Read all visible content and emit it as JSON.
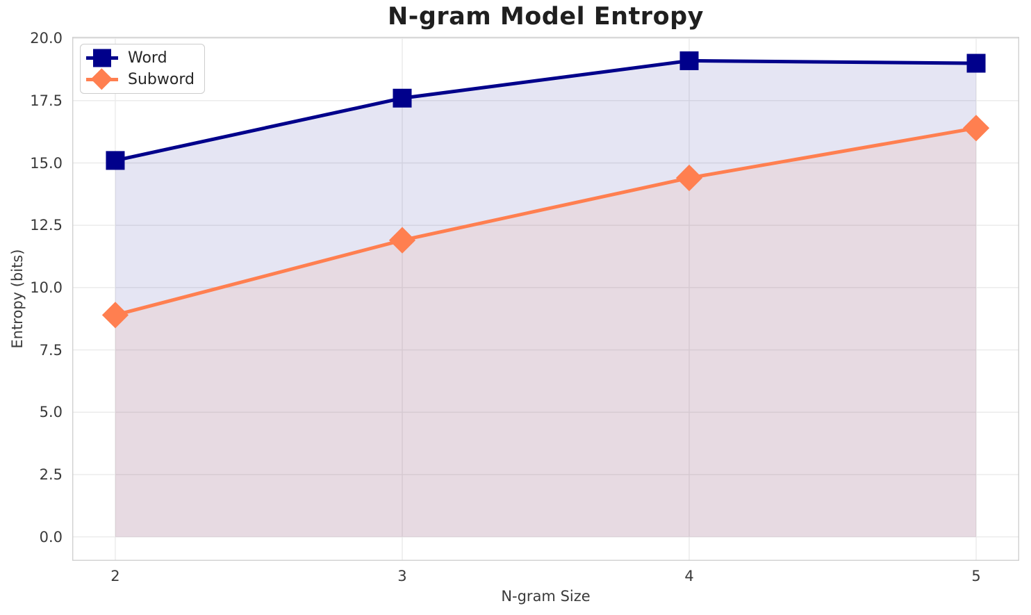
{
  "chart_data": {
    "type": "line",
    "title": "N-gram Model Entropy",
    "xlabel": "N-gram Size",
    "ylabel": "Entropy (bits)",
    "x": [
      2,
      3,
      4,
      5
    ],
    "series": [
      {
        "name": "Word",
        "values": [
          15.1,
          17.6,
          19.1,
          19.0
        ],
        "color": "#00008B",
        "marker": "square",
        "fill_to_zero": true,
        "fill_opacity": 0.1
      },
      {
        "name": "Subword",
        "values": [
          8.9,
          11.9,
          14.4,
          16.4
        ],
        "color": "#FF7F50",
        "marker": "diamond",
        "fill_to_zero": true,
        "fill_opacity": 0.1
      }
    ],
    "xlim": [
      1.85,
      5.15
    ],
    "ylim": [
      -0.96,
      20.06
    ],
    "xtick_values": [
      2,
      3,
      4,
      5
    ],
    "xtick_labels": [
      "2",
      "3",
      "4",
      "5"
    ],
    "ytick_values": [
      0,
      2.5,
      5,
      7.5,
      10,
      12.5,
      15,
      17.5,
      20
    ],
    "ytick_labels": [
      "0.0",
      "2.5",
      "5.0",
      "7.5",
      "10.0",
      "12.5",
      "15.0",
      "17.5",
      "20.0"
    ],
    "grid": true,
    "legend_position": "upper left"
  }
}
